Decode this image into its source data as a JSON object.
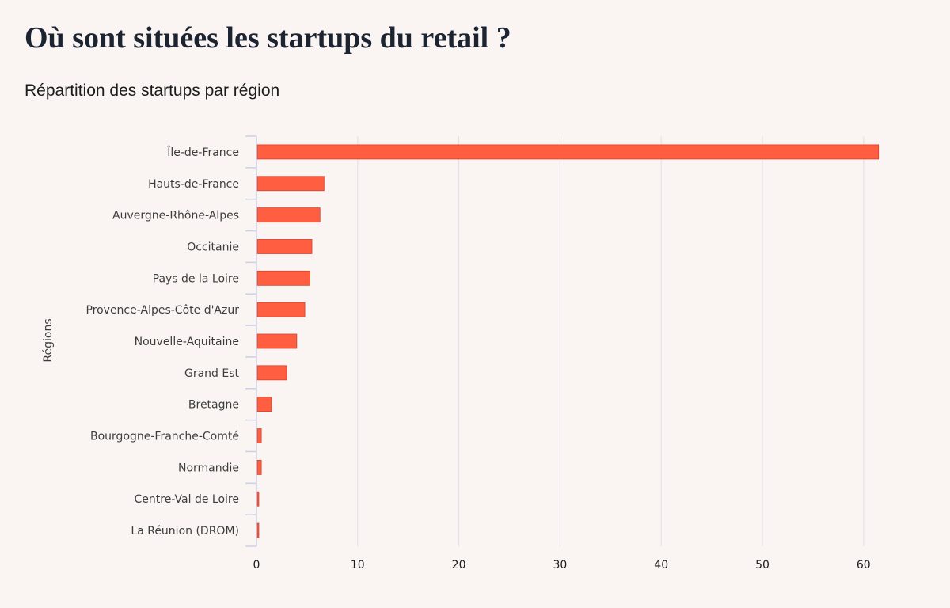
{
  "header": {
    "title": "Où sont situées les startups du retail ?",
    "subtitle": "Répartition des startups par région"
  },
  "chart_data": {
    "type": "bar",
    "orientation": "horizontal",
    "title": "Où sont situées les startups du retail ?",
    "subtitle": "Répartition des startups par région",
    "xlabel": "",
    "ylabel": "Régions",
    "xlim": [
      0,
      62
    ],
    "xticks": [
      0,
      10,
      20,
      30,
      40,
      50,
      60
    ],
    "grid": "vertical",
    "legend": "none",
    "bar_color": "#ff5f40",
    "bar_edge_color": "#d6402a",
    "categories": [
      "Île-de-France",
      "Hauts-de-France",
      "Auvergne-Rhône-Alpes",
      "Occitanie",
      "Pays de la Loire",
      "Provence-Alpes-Côte d'Azur",
      "Nouvelle-Aquitaine",
      "Grand Est",
      "Bretagne",
      "Bourgogne-Franche-Comté",
      "Normandie",
      "Centre-Val de Loire",
      "La Réunion (DROM)"
    ],
    "values": [
      61.4,
      6.6,
      6.2,
      5.4,
      5.2,
      4.7,
      3.9,
      2.9,
      1.4,
      0.4,
      0.4,
      0.15,
      0.15
    ]
  }
}
